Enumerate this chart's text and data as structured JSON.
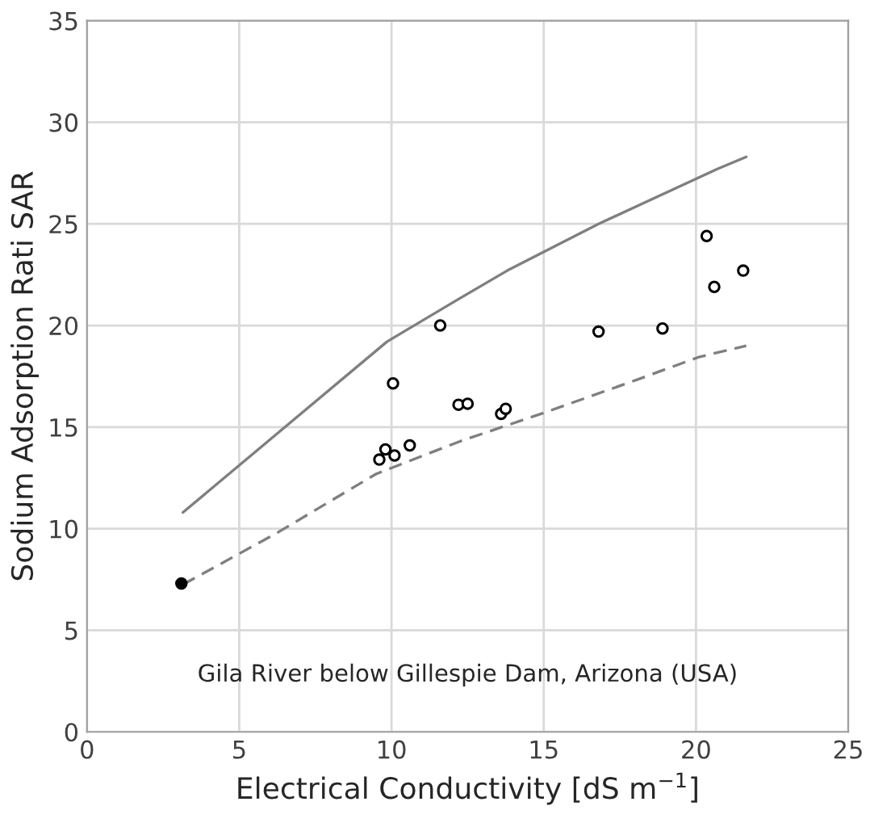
{
  "chart_data": {
    "type": "scatter",
    "xlabel": "Electrical Conductivity [dS m$^{−1}$]",
    "ylabel": "Sodium Adsorption Rati SAR",
    "annotations": [
      "Gila River below Gillespie Dam, Arizona (USA)"
    ],
    "xlim": [
      0,
      25
    ],
    "xticks": [
      0,
      5,
      10,
      15,
      20,
      25
    ],
    "ylim": [
      0,
      35
    ],
    "yticks": [
      0,
      5,
      10,
      15,
      20,
      25,
      30,
      35
    ],
    "grid": true,
    "series": [
      {
        "type": "line",
        "color": "#7f7f7f",
        "line_style": "solid",
        "marker": "none",
        "x": [
          3.15,
          9.85,
          12.2,
          13.8,
          16.8,
          20.7,
          21.65
        ],
        "values": [
          10.8,
          19.2,
          21.3,
          22.7,
          25.0,
          27.7,
          28.3
        ]
      },
      {
        "type": "line",
        "color": "#7f7f7f",
        "line_style": "dashed",
        "marker": "none",
        "x": [
          3.15,
          6.25,
          9.5,
          12.25,
          15.0,
          18.1,
          20.1,
          21.65
        ],
        "values": [
          7.25,
          9.8,
          12.7,
          14.3,
          15.7,
          17.35,
          18.45,
          19.0
        ]
      },
      {
        "color": "#ffffff",
        "marker": "circle",
        "x": [
          9.6,
          9.8,
          10.1,
          10.6,
          10.05,
          11.6,
          12.2,
          12.5,
          13.6,
          13.75,
          16.8,
          18.9,
          20.35,
          20.6,
          21.55
        ],
        "values": [
          13.4,
          13.9,
          13.6,
          14.1,
          17.15,
          20.0,
          16.1,
          16.15,
          15.65,
          15.9,
          19.7,
          19.85,
          24.4,
          21.9,
          22.7
        ]
      },
      {
        "color": "#000000",
        "marker": "circle",
        "x": [
          3.1
        ],
        "values": [
          7.3
        ]
      }
    ]
  }
}
